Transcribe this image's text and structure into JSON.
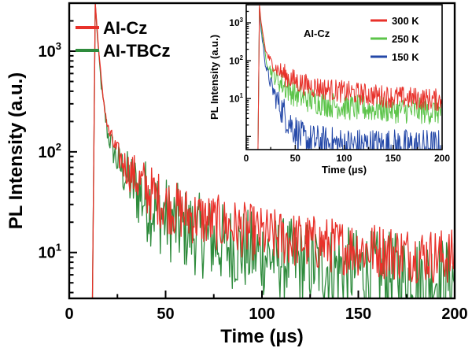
{
  "chart_data": [
    {
      "type": "line",
      "panel": "main",
      "xlabel": "Time (µs)",
      "ylabel": "PL Intensity (a.u.)",
      "xlim": [
        0,
        200
      ],
      "ylim": [
        3.5,
        3000
      ],
      "yscale": "log",
      "xticks": [
        "0",
        "50",
        "100",
        "150",
        "200"
      ],
      "ytick_mantissa": [
        "10",
        "10",
        "10"
      ],
      "ytick_exponent": [
        "1",
        "2",
        "3"
      ],
      "ytick_values": [
        10,
        100,
        1000
      ],
      "legend_position": "top-left",
      "series": [
        {
          "name": "AI-Cz",
          "color": "#e8312a",
          "onset": 12,
          "peak_time": 13.5,
          "peak": 3000,
          "noise": 0.28,
          "x": [
            12,
            13.5,
            15,
            17,
            20,
            25,
            30,
            40,
            50,
            60,
            80,
            100,
            120,
            140,
            160,
            180,
            200
          ],
          "values": [
            3.5,
            3000,
            1200,
            420,
            170,
            95,
            68,
            42,
            30,
            24,
            19,
            15,
            13,
            11.5,
            10.5,
            9.5,
            9
          ]
        },
        {
          "name": "AI-TBCz",
          "color": "#2e8b3c",
          "onset": 12,
          "peak_time": 13.5,
          "peak": 2950,
          "noise": 0.42,
          "x": [
            12,
            13.5,
            15,
            17,
            20,
            25,
            30,
            40,
            50,
            60,
            80,
            100,
            120,
            140,
            160,
            180,
            200
          ],
          "values": [
            3.5,
            2950,
            1100,
            380,
            150,
            80,
            55,
            33,
            22,
            17,
            12,
            9.5,
            8,
            7,
            6.3,
            5.8,
            5.5
          ]
        }
      ]
    },
    {
      "type": "line",
      "panel": "inset",
      "title": "AI-Cz",
      "xlabel": "Time (µs)",
      "ylabel": "PL Intensity (a.u.)",
      "xlim": [
        0,
        200
      ],
      "ylim": [
        0.45,
        3000
      ],
      "yscale": "log",
      "xticks": [
        "0",
        "50",
        "100",
        "150",
        "200"
      ],
      "ytick_mantissa": [
        "10",
        "10",
        "10"
      ],
      "ytick_exponent": [
        "1",
        "2",
        "3"
      ],
      "ytick_values": [
        10,
        100,
        1000
      ],
      "legend_position": "top-right",
      "series": [
        {
          "name": "300 K",
          "color": "#e8312a",
          "onset": 12,
          "peak_time": 13.5,
          "peak": 2900,
          "noise": 0.3,
          "x": [
            12,
            13.5,
            15,
            20,
            25,
            30,
            40,
            50,
            60,
            80,
            100,
            120,
            150,
            200
          ],
          "values": [
            0.5,
            2900,
            1100,
            170,
            95,
            65,
            40,
            29,
            23,
            18,
            15,
            13,
            11,
            9
          ]
        },
        {
          "name": "250 K",
          "color": "#5cc44a",
          "onset": 12,
          "peak_time": 13.5,
          "peak": 2700,
          "noise": 0.35,
          "x": [
            12,
            13.5,
            15,
            20,
            25,
            30,
            40,
            50,
            60,
            80,
            100,
            120,
            150,
            200
          ],
          "values": [
            0.5,
            2700,
            900,
            110,
            55,
            35,
            20,
            13,
            10,
            7.5,
            6,
            5.5,
            5,
            4.5
          ]
        },
        {
          "name": "150 K",
          "color": "#2448a8",
          "onset": 12,
          "peak_time": 13.5,
          "peak": 2500,
          "noise": 0.45,
          "x": [
            12,
            13.5,
            15,
            20,
            25,
            30,
            35,
            40,
            45,
            50,
            55,
            60,
            100,
            200
          ],
          "values": [
            0.5,
            2500,
            700,
            70,
            25,
            11,
            6,
            3.5,
            2.2,
            1.5,
            1.0,
            0.8,
            0.6,
            0.55
          ]
        }
      ]
    }
  ]
}
